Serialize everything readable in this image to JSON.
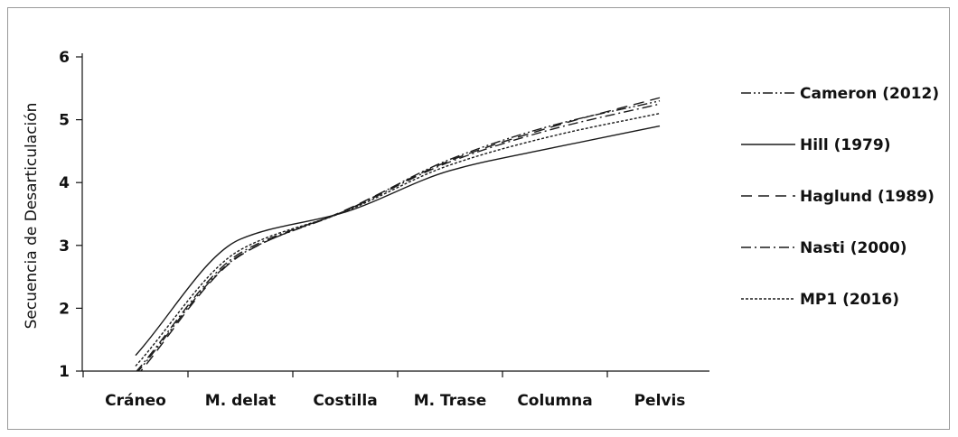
{
  "chart_data": {
    "type": "line",
    "title": "",
    "xlabel": "",
    "ylabel": "Secuencia de Desarticulación",
    "categories": [
      "Cráneo",
      "M. delat",
      "Costilla",
      "M. Trase",
      "Columna",
      "Pelvis"
    ],
    "yticks": [
      1,
      2,
      3,
      4,
      5,
      6
    ],
    "ylim": [
      1,
      6
    ],
    "grid": false,
    "legend_position": "right",
    "series": [
      {
        "name": "Cameron (2012)",
        "dash": "dashdotdot",
        "values": [
          0.95,
          2.85,
          3.55,
          4.37,
          4.92,
          5.3
        ]
      },
      {
        "name": "Hill (1979)",
        "dash": "solid",
        "values": [
          1.25,
          3.1,
          3.53,
          4.19,
          4.56,
          4.9
        ]
      },
      {
        "name": "Haglund (1989)",
        "dash": "dashed",
        "values": [
          0.9,
          2.84,
          3.56,
          4.35,
          4.9,
          5.35
        ]
      },
      {
        "name": "Nasti (2000)",
        "dash": "dashdot",
        "values": [
          0.98,
          2.88,
          3.55,
          4.33,
          4.86,
          5.25
        ]
      },
      {
        "name": "MP1 (2016)",
        "dash": "dotted",
        "values": [
          1.08,
          2.93,
          3.54,
          4.28,
          4.75,
          5.1
        ]
      }
    ]
  }
}
